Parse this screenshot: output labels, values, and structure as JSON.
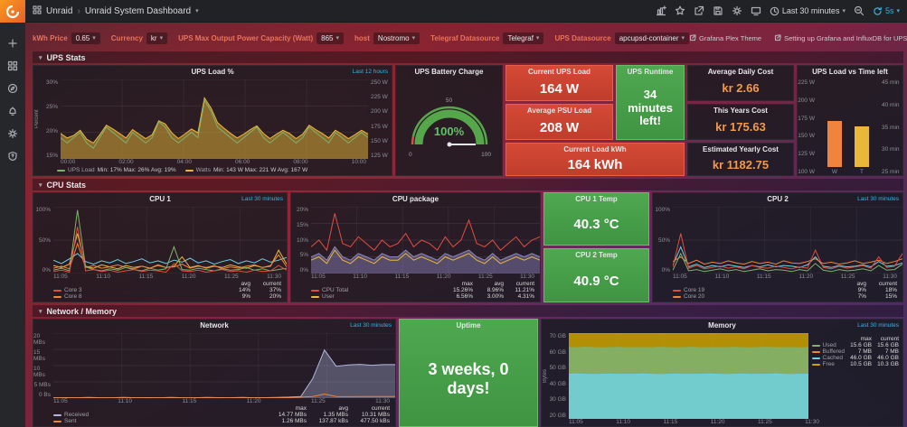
{
  "topbar": {
    "brand": "Unraid",
    "separator": "›",
    "title": "Unraid System Dashboard",
    "time_range": "Last 30 minutes",
    "refresh_interval": "5s"
  },
  "variables": [
    {
      "label": "kWh Price",
      "value": "0.65"
    },
    {
      "label": "Currency",
      "value": "kr"
    },
    {
      "label": "UPS Max Output Power Capacity (Watt)",
      "value": "865"
    },
    {
      "label": "host",
      "value": "Nostromo"
    },
    {
      "label": "Telegraf Datasource",
      "value": "Telegraf"
    },
    {
      "label": "UPS Datasource",
      "value": "apcupsd-container"
    }
  ],
  "links": [
    {
      "label": "Grafana Plex Theme"
    },
    {
      "label": "Setting up Grafana and InfluxDB for UPS monitoring on unRAID"
    }
  ],
  "rows": {
    "ups": "UPS Stats",
    "cpu": "CPU Stats",
    "net": "Network / Memory"
  },
  "panels": {
    "ups_load": {
      "title": "UPS Load %",
      "time_override": "Last 12 hours",
      "ylabel": "Percent",
      "yticks_left": [
        "30%",
        "25%",
        "20%",
        "15%"
      ],
      "yticks_right": [
        "250 W",
        "225 W",
        "200 W",
        "175 W",
        "150 W",
        "125 W"
      ],
      "xticks": [
        "00:00",
        "02:00",
        "04:00",
        "06:00",
        "08:00",
        "10:00"
      ],
      "legend": [
        {
          "color": "#7eb26d",
          "label": "UPS Load",
          "stats": "Min: 17% Max: 26% Avg: 19%"
        },
        {
          "color": "#eab839",
          "label": "Watts",
          "stats": "Min: 143 W Max: 221 W Avg: 167 W"
        }
      ]
    },
    "battery": {
      "title": "UPS Battery Charge",
      "value": "100%",
      "ticks": [
        "0",
        "50",
        "100"
      ]
    },
    "current_load": {
      "title": "Current UPS Load",
      "value": "164 W"
    },
    "avg_psu": {
      "title": "Average PSU Load",
      "value": "208 W"
    },
    "load_kwh": {
      "title": "Current Load kWh",
      "value": "164 kWh"
    },
    "runtime": {
      "title": "UPS Runtime",
      "value": "34 minutes left!"
    },
    "daily_cost": {
      "title": "Average Daily Cost",
      "value": "kr 2.66"
    },
    "year_cost": {
      "title": "This Years Cost",
      "value": "kr 175.63"
    },
    "est_cost": {
      "title": "Estimated Yearly Cost",
      "value": "kr 1182.75"
    },
    "load_vs_time": {
      "title": "UPS Load vs Time left",
      "yticks_left": [
        "225 W",
        "200 W",
        "175 W",
        "150 W",
        "125 W",
        "100 W"
      ],
      "yticks_right": [
        "45 min",
        "40 min",
        "35 min",
        "30 min",
        "25 min"
      ],
      "bars": [
        {
          "label": "W",
          "value": "164 W",
          "color": "#ef843c"
        },
        {
          "label": "T",
          "value": "34 min",
          "color": "#eab839"
        }
      ]
    },
    "cpu1": {
      "title": "CPU 1",
      "time_override": "Last 30 minutes",
      "yticks": [
        "100%",
        "50%",
        "0%"
      ],
      "xticks": [
        "11:05",
        "11:10",
        "11:15",
        "11:20",
        "11:25",
        "11:30"
      ],
      "legend_cols": [
        "avg",
        "current"
      ],
      "legend_rows": [
        {
          "color": "#e24d42",
          "name": "Core 3",
          "v1": "14%",
          "v2": "37%"
        },
        {
          "color": "#ef843c",
          "name": "Core 8",
          "v1": "9%",
          "v2": "20%"
        }
      ]
    },
    "cpu_package": {
      "title": "CPU package",
      "yticks": [
        "20%",
        "15%",
        "10%",
        "5%",
        "0%"
      ],
      "xticks": [
        "11:05",
        "11:10",
        "11:15",
        "11:20",
        "11:25",
        "11:30"
      ],
      "legend_cols": [
        "max",
        "avg",
        "current"
      ],
      "legend_rows": [
        {
          "color": "#e24d42",
          "name": "CPU Total",
          "v1": "15.26%",
          "v2": "8.96%",
          "v3": "11.21%"
        },
        {
          "color": "#eab839",
          "name": "User",
          "v1": "6.56%",
          "v2": "3.00%",
          "v3": "4.31%"
        }
      ]
    },
    "cpu1_temp": {
      "title": "CPU 1 Temp",
      "value": "40.3 °C"
    },
    "cpu2_temp": {
      "title": "CPU 2 Temp",
      "value": "40.9 °C"
    },
    "cpu2": {
      "title": "CPU 2",
      "time_override": "Last 30 minutes",
      "yticks": [
        "100%",
        "50%",
        "0%"
      ],
      "xticks": [
        "11:05",
        "11:10",
        "11:15",
        "11:20",
        "11:25",
        "11:30"
      ],
      "legend_cols": [
        "avg",
        "current"
      ],
      "legend_rows": [
        {
          "color": "#e24d42",
          "name": "Core 19",
          "v1": "9%",
          "v2": "18%"
        },
        {
          "color": "#ef843c",
          "name": "Core 20",
          "v1": "7%",
          "v2": "15%"
        }
      ]
    },
    "network": {
      "title": "Network",
      "time_override": "Last 30 minutes",
      "yticks": [
        "20 MBs",
        "15 MBs",
        "10 MBs",
        "5 MBs",
        "0 Bs"
      ],
      "xticks": [
        "11:05",
        "11:10",
        "11:15",
        "11:20",
        "11:25",
        "11:30"
      ],
      "legend_cols": [
        "max",
        "avg",
        "current"
      ],
      "legend_rows": [
        {
          "color": "#b0b6dc",
          "name": "Received",
          "v1": "14.77 MBs",
          "v2": "1.35 MBs",
          "v3": "10.31 MBs"
        },
        {
          "color": "#ef843c",
          "name": "Sent",
          "v1": "1.26 MBs",
          "v2": "137.87 kBs",
          "v3": "477.50 kBs"
        }
      ]
    },
    "uptime": {
      "title": "Uptime",
      "value": "3 weeks, 0 days!"
    },
    "memory": {
      "title": "Memory",
      "time_override": "Last 30 minutes",
      "ylabel": "Bytes",
      "yticks": [
        "70 GB",
        "60 GB",
        "50 GB",
        "40 GB",
        "30 GB",
        "20 GB"
      ],
      "xticks": [
        "11:05",
        "11:10",
        "11:15",
        "11:20",
        "11:25",
        "11:30"
      ],
      "legend_cols": [
        "max",
        "current"
      ],
      "legend_rows": [
        {
          "color": "#7eb26d",
          "name": "Used",
          "v1": "15.6 GB",
          "v2": "15.6 GB"
        },
        {
          "color": "#ef843c",
          "name": "Buffered",
          "v1": "7 MB",
          "v2": "7 MB"
        },
        {
          "color": "#6ed0e0",
          "name": "Cached",
          "v1": "46.0 GB",
          "v2": "46.0 GB"
        },
        {
          "color": "#cca300",
          "name": "Free",
          "v1": "10.5 GB",
          "v2": "10.3 GB"
        }
      ]
    }
  },
  "chart_data": {
    "ups_load": {
      "type": "line",
      "gridlines": 3,
      "vgrid": 5,
      "series": [
        {
          "name": "Watts",
          "color": "#eab839",
          "fill": true,
          "fillOpacity": 0.5,
          "ymin": 125,
          "ymax": 250,
          "points": [
            165,
            158,
            162,
            170,
            156,
            150,
            163,
            178,
            172,
            165,
            158,
            171,
            164,
            157,
            163,
            185,
            180,
            166,
            157,
            164,
            172,
            166,
            221,
            205,
            182,
            173,
            165,
            158,
            164,
            171,
            177,
            165,
            157,
            164,
            170,
            165,
            157,
            164,
            178,
            171,
            165,
            158,
            170,
            164,
            157,
            163,
            170,
            164
          ]
        },
        {
          "name": "UPS Load",
          "color": "#7eb26d",
          "ymin": 15,
          "ymax": 30,
          "points": [
            19,
            18,
            19,
            20,
            18,
            17,
            19,
            21,
            20,
            19,
            18,
            20,
            19,
            18,
            19,
            22,
            21,
            19,
            18,
            19,
            20,
            19,
            26,
            24,
            21,
            20,
            19,
            18,
            19,
            20,
            21,
            19,
            18,
            19,
            20,
            19,
            18,
            19,
            21,
            20,
            19,
            18,
            20,
            19,
            18,
            19,
            20,
            19
          ]
        }
      ]
    },
    "cpu1": {
      "type": "line",
      "ymin": 0,
      "ymax": 100,
      "gridlines": 2,
      "vgrid": 5,
      "series": [
        {
          "color": "#6ed0e0",
          "points": [
            20,
            15,
            22,
            30,
            18,
            14,
            19,
            16,
            21,
            15,
            18,
            22,
            16,
            19,
            15,
            20,
            17,
            23,
            16,
            19,
            14,
            18,
            21,
            15,
            19,
            16,
            22,
            17,
            20,
            24
          ]
        },
        {
          "color": "#eab839",
          "points": [
            12,
            9,
            14,
            60,
            11,
            8,
            13,
            10,
            7,
            12,
            9,
            11,
            8,
            13,
            9,
            11,
            25,
            9,
            12,
            8,
            11,
            9,
            13,
            10,
            8,
            12,
            9,
            11,
            35,
            14
          ]
        },
        {
          "color": "#ef843c",
          "points": [
            8,
            11,
            7,
            45,
            9,
            12,
            8,
            10,
            13,
            9,
            7,
            11,
            8,
            12,
            9,
            10,
            14,
            8,
            11,
            9,
            12,
            7,
            10,
            8,
            11,
            13,
            9,
            12,
            28,
            10
          ]
        },
        {
          "color": "#7eb26d",
          "points": [
            5,
            8,
            4,
            95,
            10,
            6,
            4,
            7,
            5,
            9,
            6,
            4,
            8,
            5,
            7,
            40,
            6,
            5,
            8,
            6,
            4,
            7,
            5,
            6,
            9,
            5,
            7,
            4,
            6,
            8
          ]
        },
        {
          "color": "#e24d42",
          "points": [
            3,
            5,
            2,
            70,
            4,
            6,
            3,
            5,
            2,
            4,
            6,
            3,
            5,
            4,
            2,
            15,
            4,
            3,
            5,
            2,
            4,
            6,
            3,
            4,
            2,
            5,
            3,
            4,
            12,
            5
          ]
        }
      ]
    },
    "cpu_package": {
      "type": "line",
      "ymin": 0,
      "ymax": 20,
      "gridlines": 4,
      "vgrid": 5,
      "series": [
        {
          "color": "#9087c0",
          "fill": true,
          "fillOpacity": 0.45,
          "points": [
            5,
            6,
            4,
            8,
            5,
            4,
            6,
            5,
            4,
            6,
            5,
            5,
            7,
            5,
            6,
            5,
            4,
            6,
            5,
            6,
            7,
            5,
            4,
            6,
            4,
            5,
            6,
            5,
            6,
            5
          ]
        },
        {
          "color": "#e24d42",
          "points": [
            8,
            10,
            7,
            18,
            9,
            8,
            11,
            9,
            7,
            10,
            8,
            9,
            12,
            8,
            10,
            9,
            7,
            11,
            8,
            10,
            16,
            9,
            8,
            10,
            7,
            9,
            11,
            8,
            10,
            11
          ]
        },
        {
          "color": "#eab839",
          "points": [
            4,
            5,
            3,
            7,
            4,
            3,
            5,
            4,
            3,
            5,
            4,
            4,
            6,
            4,
            5,
            4,
            3,
            5,
            4,
            5,
            6,
            4,
            3,
            5,
            3,
            4,
            5,
            4,
            5,
            4
          ]
        }
      ]
    },
    "cpu2": {
      "type": "line",
      "ymin": 0,
      "ymax": 100,
      "gridlines": 2,
      "vgrid": 5,
      "series": [
        {
          "color": "#6ed0e0",
          "points": [
            12,
            40,
            10,
            14,
            9,
            12,
            10,
            13,
            11,
            9,
            12,
            10,
            13,
            10,
            12,
            11,
            9,
            13,
            25,
            11,
            9,
            12,
            10,
            11,
            13,
            10,
            18,
            11,
            12,
            16
          ]
        },
        {
          "color": "#ef843c",
          "points": [
            18,
            25,
            15,
            20,
            14,
            17,
            15,
            19,
            16,
            14,
            18,
            15,
            17,
            14,
            19,
            16,
            15,
            18,
            22,
            15,
            17,
            14,
            16,
            19,
            15,
            17,
            20,
            15,
            18,
            22
          ]
        },
        {
          "color": "#7eb26d",
          "points": [
            5,
            30,
            4,
            6,
            3,
            5,
            7,
            4,
            6,
            3,
            5,
            7,
            4,
            6,
            5,
            3,
            6,
            4,
            15,
            5,
            3,
            6,
            4,
            5,
            7,
            4,
            12,
            5,
            6,
            14
          ]
        },
        {
          "color": "#e24d42",
          "points": [
            10,
            60,
            8,
            12,
            7,
            9,
            11,
            8,
            10,
            7,
            12,
            9,
            8,
            11,
            9,
            7,
            10,
            8,
            35,
            9,
            7,
            11,
            8,
            10,
            12,
            8,
            25,
            9,
            11,
            30
          ]
        }
      ]
    },
    "network": {
      "type": "line",
      "ymin": 0,
      "ymax": 20,
      "gridlines": 4,
      "vgrid": 5,
      "series": [
        {
          "name": "Received",
          "color": "#b0b6dc",
          "fill": true,
          "fillOpacity": 0.35,
          "points": [
            0.1,
            0.15,
            0.1,
            0.2,
            0.1,
            0.1,
            0.2,
            0.1,
            0.15,
            0.1,
            0.2,
            0.1,
            0.1,
            0.2,
            0.15,
            0.1,
            0.2,
            0.1,
            0.15,
            0.2,
            0.3,
            0.5,
            6,
            14.8,
            9.8,
            10.2,
            10.4,
            10.1,
            10.3,
            10.3
          ]
        },
        {
          "name": "Sent",
          "color": "#ef843c",
          "points": [
            0.05,
            0.05,
            0.1,
            0.05,
            0.08,
            0.05,
            0.1,
            0.06,
            0.05,
            0.09,
            0.05,
            0.07,
            0.05,
            0.1,
            0.06,
            0.05,
            0.08,
            0.05,
            0.06,
            0.1,
            0.15,
            0.3,
            0.5,
            1.26,
            0.5,
            0.45,
            0.5,
            0.48,
            0.5,
            0.48
          ]
        }
      ]
    },
    "memory": {
      "type": "area-stack",
      "ymin": 20,
      "ymax": 70,
      "gridlines": 5,
      "vgrid": 5,
      "series": [
        {
          "name": "Free",
          "color": "#cca300",
          "fill": true,
          "fillOpacity": 0.85,
          "points": [
            72,
            72,
            72,
            72,
            72,
            72,
            72,
            72,
            72,
            72,
            72,
            72,
            72,
            72,
            72,
            72,
            72,
            72,
            72,
            72,
            72,
            72,
            72,
            72,
            72,
            72,
            72,
            72,
            72,
            72
          ]
        },
        {
          "name": "Used",
          "color": "#7eb26d",
          "fill": true,
          "fillOpacity": 0.9,
          "points": [
            61.6,
            61.5,
            61.7,
            61.6,
            61.5,
            61.6,
            61.7,
            61.5,
            61.6,
            61.6,
            61.5,
            61.7,
            61.6,
            61.5,
            61.6,
            61.7,
            61.5,
            61.6,
            61.6,
            61.5,
            61.7,
            61.6,
            61.5,
            61.6,
            61.7,
            61.5,
            61.6,
            61.6,
            61.5,
            61.6
          ]
        },
        {
          "name": "Cached",
          "color": "#6ed0e0",
          "fill": true,
          "fillOpacity": 0.85,
          "points": [
            46,
            46.2,
            46,
            45.8,
            46,
            46.1,
            45.9,
            46,
            46,
            46.2,
            46,
            45.8,
            46,
            46.1,
            45.9,
            46,
            46,
            46.2,
            46,
            45.8,
            46,
            46.1,
            45.9,
            46,
            46,
            46.2,
            46,
            45.8,
            46,
            46
          ]
        }
      ]
    }
  }
}
